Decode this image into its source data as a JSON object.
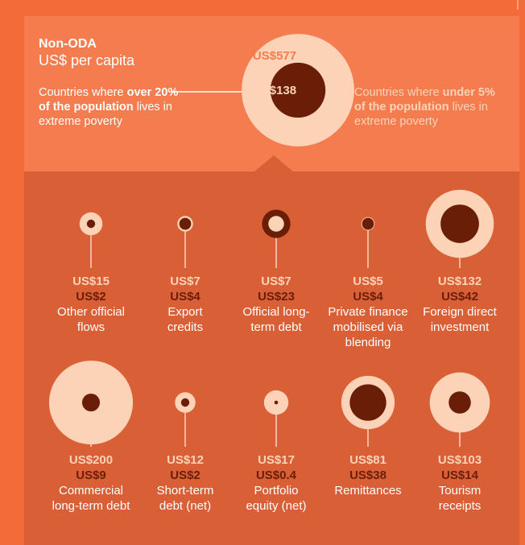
{
  "chart_data": {
    "type": "nested-circles",
    "title": "Non-ODA",
    "subtitle": "US$ per capita",
    "total": {
      "values": [
        577,
        138
      ],
      "value_labels": [
        "US$577",
        "US$138"
      ]
    },
    "legend": [
      {
        "parts": [
          "Countries where ",
          "under",
          " ",
          "5% of the population",
          " lives in extreme poverty"
        ]
      },
      {
        "parts": [
          "Countries where ",
          "over",
          " ",
          "20% of the population",
          " lives in extreme poverty"
        ]
      }
    ],
    "categories": [
      "Other official\nflows",
      "Export\ncredits",
      "Official long-\nterm debt",
      "Private finance\nmobilised via\nblending",
      "Foreign direct\ninvestment",
      "Commercial\nlong-term debt",
      "Short-term\ndebt (net)",
      "Portfolio\nequity (net)",
      "Remittances",
      "Tourism\nreceipts"
    ],
    "series": [
      {
        "color": "#fdd3b8",
        "values": [
          15,
          7,
          7,
          5,
          132,
          200,
          12,
          17,
          81,
          103
        ],
        "value_labels": [
          "US$15",
          "US$7",
          "US$7",
          "US$5",
          "US$132",
          "US$200",
          "US$12",
          "US$17",
          "US$81",
          "US$103"
        ]
      },
      {
        "color": "#6a1e08",
        "values": [
          2,
          4,
          23,
          4,
          42,
          9,
          2,
          0.4,
          38,
          14
        ],
        "value_labels": [
          "US$2",
          "US$4",
          "US$23",
          "US$4",
          "US$42",
          "US$9",
          "US$2",
          "US$0.4",
          "US$38",
          "US$14"
        ]
      }
    ]
  }
}
